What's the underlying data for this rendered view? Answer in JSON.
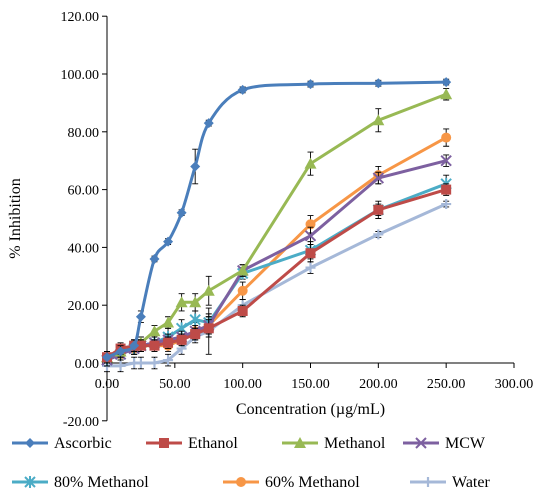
{
  "chart_data": {
    "type": "line",
    "xlabel": "Concentration (µg/mL)",
    "ylabel": "% Inhibition",
    "xlim": [
      0,
      300
    ],
    "ylim": [
      -20,
      120
    ],
    "x_ticks": [
      "0.00",
      "50.00",
      "100.00",
      "150.00",
      "200.00",
      "250.00",
      "300.00"
    ],
    "y_ticks": [
      "-20.00",
      "0.00",
      "20.00",
      "40.00",
      "60.00",
      "80.00",
      "100.00",
      "120.00"
    ],
    "grid": false,
    "legend_position": "bottom",
    "series": [
      {
        "name": "Ascorbic",
        "color": "#4a7ebb",
        "marker": "diamond",
        "smooth": true,
        "x": [
          0,
          10,
          20,
          25,
          35,
          45,
          55,
          65,
          75,
          100,
          150,
          200,
          250
        ],
        "y": [
          2,
          4,
          6,
          16,
          36,
          42,
          52,
          68,
          83,
          94.5,
          96.5,
          96.8,
          97.2
        ],
        "err": [
          2,
          2,
          2,
          2,
          1,
          1,
          1,
          6,
          1,
          1,
          1,
          1,
          1
        ]
      },
      {
        "name": "Ethanol",
        "color": "#be4b48",
        "marker": "square",
        "smooth": false,
        "x": [
          0,
          10,
          20,
          25,
          35,
          45,
          55,
          65,
          75,
          100,
          150,
          200,
          250
        ],
        "y": [
          2,
          5,
          6,
          6,
          6,
          7,
          8,
          10,
          12,
          18,
          38,
          53,
          60
        ],
        "err": [
          2,
          2,
          2,
          2,
          2,
          2,
          2,
          2,
          3,
          2,
          3,
          2,
          2
        ]
      },
      {
        "name": "Methanol",
        "color": "#98b954",
        "marker": "triangle",
        "smooth": false,
        "x": [
          0,
          10,
          20,
          25,
          35,
          45,
          55,
          65,
          75,
          100,
          150,
          200,
          250
        ],
        "y": [
          2,
          4,
          6,
          7,
          11,
          14,
          21,
          21,
          25,
          32,
          69,
          84,
          93
        ],
        "err": [
          2,
          2,
          2,
          2,
          2,
          2,
          3,
          3,
          5,
          2,
          4,
          4,
          2
        ]
      },
      {
        "name": "MCW",
        "color": "#7d60a0",
        "marker": "x",
        "smooth": false,
        "x": [
          0,
          10,
          20,
          25,
          35,
          45,
          55,
          65,
          75,
          100,
          150,
          200,
          250
        ],
        "y": [
          1,
          3,
          5,
          6,
          7,
          8,
          9,
          11,
          13,
          32,
          44,
          64,
          70
        ],
        "err": [
          2,
          2,
          2,
          2,
          2,
          2,
          2,
          2,
          3,
          2,
          3,
          2,
          2
        ]
      },
      {
        "name": "80% Methanol",
        "color": "#4bacc6",
        "marker": "star",
        "smooth": false,
        "x": [
          0,
          10,
          20,
          25,
          35,
          45,
          55,
          65,
          75,
          100,
          150,
          200,
          250
        ],
        "y": [
          1,
          3,
          5,
          6,
          7,
          9,
          12,
          15,
          14,
          31,
          39,
          53,
          62
        ],
        "err": [
          2,
          2,
          2,
          2,
          2,
          3,
          3,
          3,
          3,
          2,
          3,
          3,
          3
        ]
      },
      {
        "name": "60% Methanol",
        "color": "#f79646",
        "marker": "circle",
        "smooth": false,
        "x": [
          0,
          10,
          20,
          25,
          35,
          45,
          55,
          65,
          75,
          100,
          150,
          200,
          250
        ],
        "y": [
          2,
          3,
          5,
          6,
          6,
          6,
          8,
          11,
          13,
          25,
          48,
          65,
          78
        ],
        "err": [
          2,
          2,
          2,
          2,
          2,
          2,
          2,
          3,
          3,
          3,
          3,
          3,
          3
        ]
      },
      {
        "name": "Water",
        "color": "#a5b8d8",
        "marker": "plus",
        "smooth": false,
        "x": [
          0,
          10,
          20,
          25,
          35,
          45,
          55,
          65,
          75,
          100,
          150,
          200,
          250
        ],
        "y": [
          -1,
          -1,
          0,
          0,
          0,
          1,
          5,
          9,
          11,
          20,
          33,
          44.5,
          55
        ],
        "err": [
          2,
          2,
          2,
          2,
          2,
          2,
          2,
          2,
          8,
          2,
          2,
          1,
          1
        ]
      }
    ]
  }
}
